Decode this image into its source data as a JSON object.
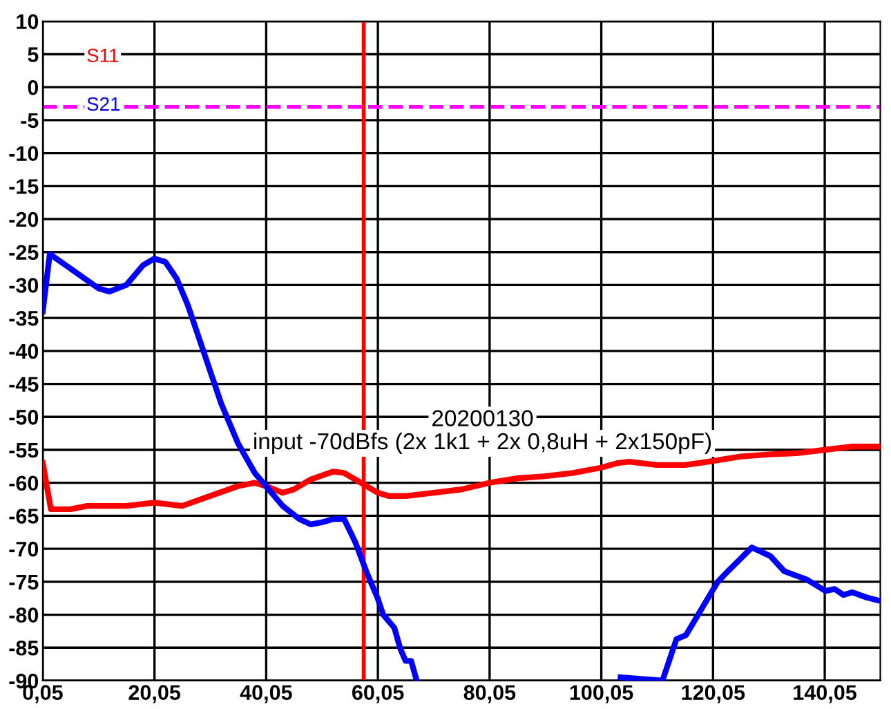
{
  "chart_data": {
    "type": "line",
    "annotations": [
      "20200130",
      "input -70dBfs (2x 1k1 + 2x 0,8uH + 2x150pF)"
    ],
    "series": [
      {
        "name": "S11",
        "color": "#ff0000",
        "x": [
          0.05,
          1.5,
          5,
          8,
          15,
          20,
          25,
          30,
          35,
          38,
          40,
          43,
          45,
          48,
          52,
          54,
          57,
          60,
          62,
          65,
          70,
          75,
          80,
          85,
          90,
          95,
          100,
          103,
          105,
          110,
          115,
          120,
          125,
          130,
          135,
          140,
          145,
          150
        ],
        "values": [
          -57,
          -64,
          -64,
          -63.5,
          -63.5,
          -63,
          -63.5,
          -62,
          -60.5,
          -60,
          -60.5,
          -61.5,
          -61,
          -59.5,
          -58.3,
          -58.5,
          -60,
          -61.5,
          -62,
          -62,
          -61.5,
          -61,
          -60,
          -59.3,
          -59,
          -58.5,
          -57.7,
          -57,
          -56.8,
          -57.3,
          -57.3,
          -56.7,
          -56,
          -55.7,
          -55.5,
          -55,
          -54.5,
          -54.5
        ]
      },
      {
        "name": "S21",
        "color": "#0000ff",
        "x": [
          0.05,
          1.3,
          5,
          10,
          12,
          15,
          18,
          20,
          22,
          24,
          26,
          28,
          30,
          32,
          35,
          38,
          40,
          43,
          46,
          48,
          50,
          52,
          54,
          56,
          58,
          60,
          61,
          63,
          64,
          65,
          66,
          67,
          103,
          103.5,
          111,
          113.5,
          115.2,
          120.9,
          122.5,
          127,
          130.3,
          132.8,
          136.9,
          140.2,
          141.8,
          143.4,
          145,
          147.6,
          149.5
        ],
        "values": [
          -34,
          -25.3,
          -27.5,
          -30.5,
          -31,
          -30,
          -27,
          -26,
          -26.5,
          -29,
          -33,
          -38,
          -43,
          -48,
          -54,
          -58.5,
          -60.5,
          -63.5,
          -65.5,
          -66.3,
          -66,
          -65.5,
          -65.5,
          -69,
          -73.5,
          -77.5,
          -80,
          -82,
          -85,
          -87,
          -87,
          -90,
          null,
          -89.5,
          -90,
          -83.7,
          -83.1,
          -75,
          -73.6,
          -69.8,
          -71.1,
          -73.4,
          -74.7,
          -76.4,
          -76.1,
          -77,
          -76.6,
          -77.4,
          -77.8
        ]
      }
    ],
    "ref_lines": [
      {
        "axis": "y",
        "value": -3,
        "color": "#ff00ff",
        "line_style": "dashed"
      },
      {
        "axis": "x",
        "value": 57.5,
        "color": "#ff0000",
        "line_style": "solid"
      }
    ],
    "xlim": [
      0.05,
      150
    ],
    "ylim": [
      -90,
      10
    ],
    "xticks": [
      {
        "value": 0.05,
        "label": "0,05"
      },
      {
        "value": 20.05,
        "label": "20,05"
      },
      {
        "value": 40.05,
        "label": "40,05"
      },
      {
        "value": 60.05,
        "label": "60,05"
      },
      {
        "value": 80.05,
        "label": "80,05"
      },
      {
        "value": 100.05,
        "label": "100,05"
      },
      {
        "value": 120.05,
        "label": "120,05"
      },
      {
        "value": 140.05,
        "label": "140,05"
      }
    ],
    "yticks": [
      10,
      5,
      0,
      -5,
      -10,
      -15,
      -20,
      -25,
      -30,
      -35,
      -40,
      -45,
      -50,
      -55,
      -60,
      -65,
      -70,
      -75,
      -80,
      -85,
      -90
    ],
    "grid": true,
    "legend": "top left",
    "marker": "none",
    "line_style": "solid"
  }
}
